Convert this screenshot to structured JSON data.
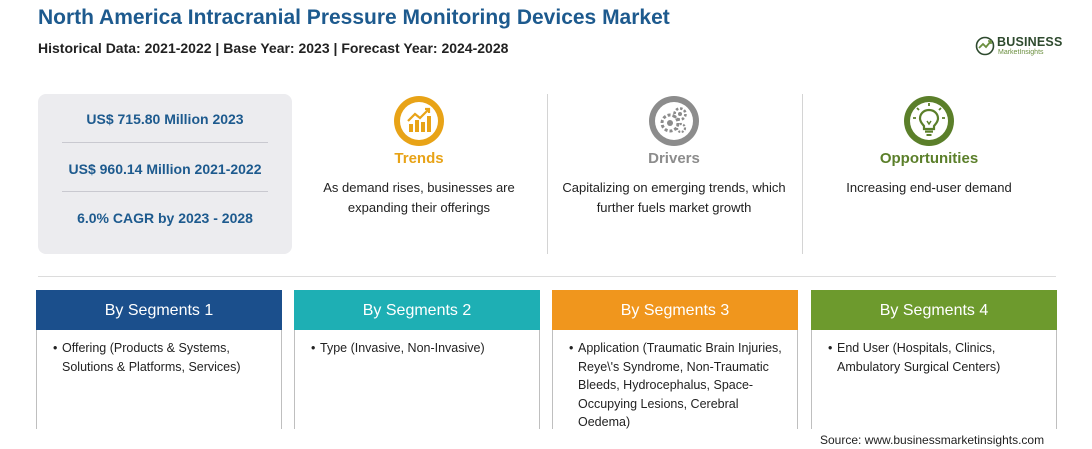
{
  "header": {
    "title": "North America Intracranial Pressure Monitoring Devices Market",
    "subtitle": "Historical Data: 2021-2022 | Base Year: 2023 | Forecast Year: 2024-2028"
  },
  "logo": {
    "brand": "BUSINESS",
    "sub": "MarketInsights"
  },
  "stats": [
    "US$ 715.80 Million 2023",
    "US$ 960.14 Million 2021-2022",
    "6.0% CAGR by 2023 - 2028"
  ],
  "insights": [
    {
      "heading": "Trends",
      "text": "As demand rises, businesses are expanding their offerings",
      "icon": "chart-growth-icon",
      "color": "#e8a317"
    },
    {
      "heading": "Drivers",
      "text": "Capitalizing on emerging trends, which further fuels market growth",
      "icon": "gears-icon",
      "color": "#8c8c8c"
    },
    {
      "heading": "Opportunities",
      "text": "Increasing end-user demand",
      "icon": "lightbulb-icon",
      "color": "#5b7f2a"
    }
  ],
  "segments": [
    {
      "title": "By Segments 1",
      "bullet": "•",
      "text": "Offering (Products & Systems, Solutions & Platforms, Services)",
      "color": "#1b4f8c"
    },
    {
      "title": "By Segments 2",
      "bullet": "•",
      "text": "Type (Invasive, Non-Invasive)",
      "color": "#1eafb4"
    },
    {
      "title": "By Segments 3",
      "bullet": "•",
      "text": "Application (Traumatic Brain Injuries, Reye\\'s Syndrome, Non-Traumatic Bleeds, Hydrocephalus, Space-Occupying Lesions, Cerebral Oedema)",
      "color": "#f0961d"
    },
    {
      "title": "By Segments 4",
      "bullet": "•",
      "text": "End User (Hospitals, Clinics, Ambulatory Surgical Centers)",
      "color": "#6d9a2d"
    }
  ],
  "source": "Source: www.businessmarketinsights.com"
}
